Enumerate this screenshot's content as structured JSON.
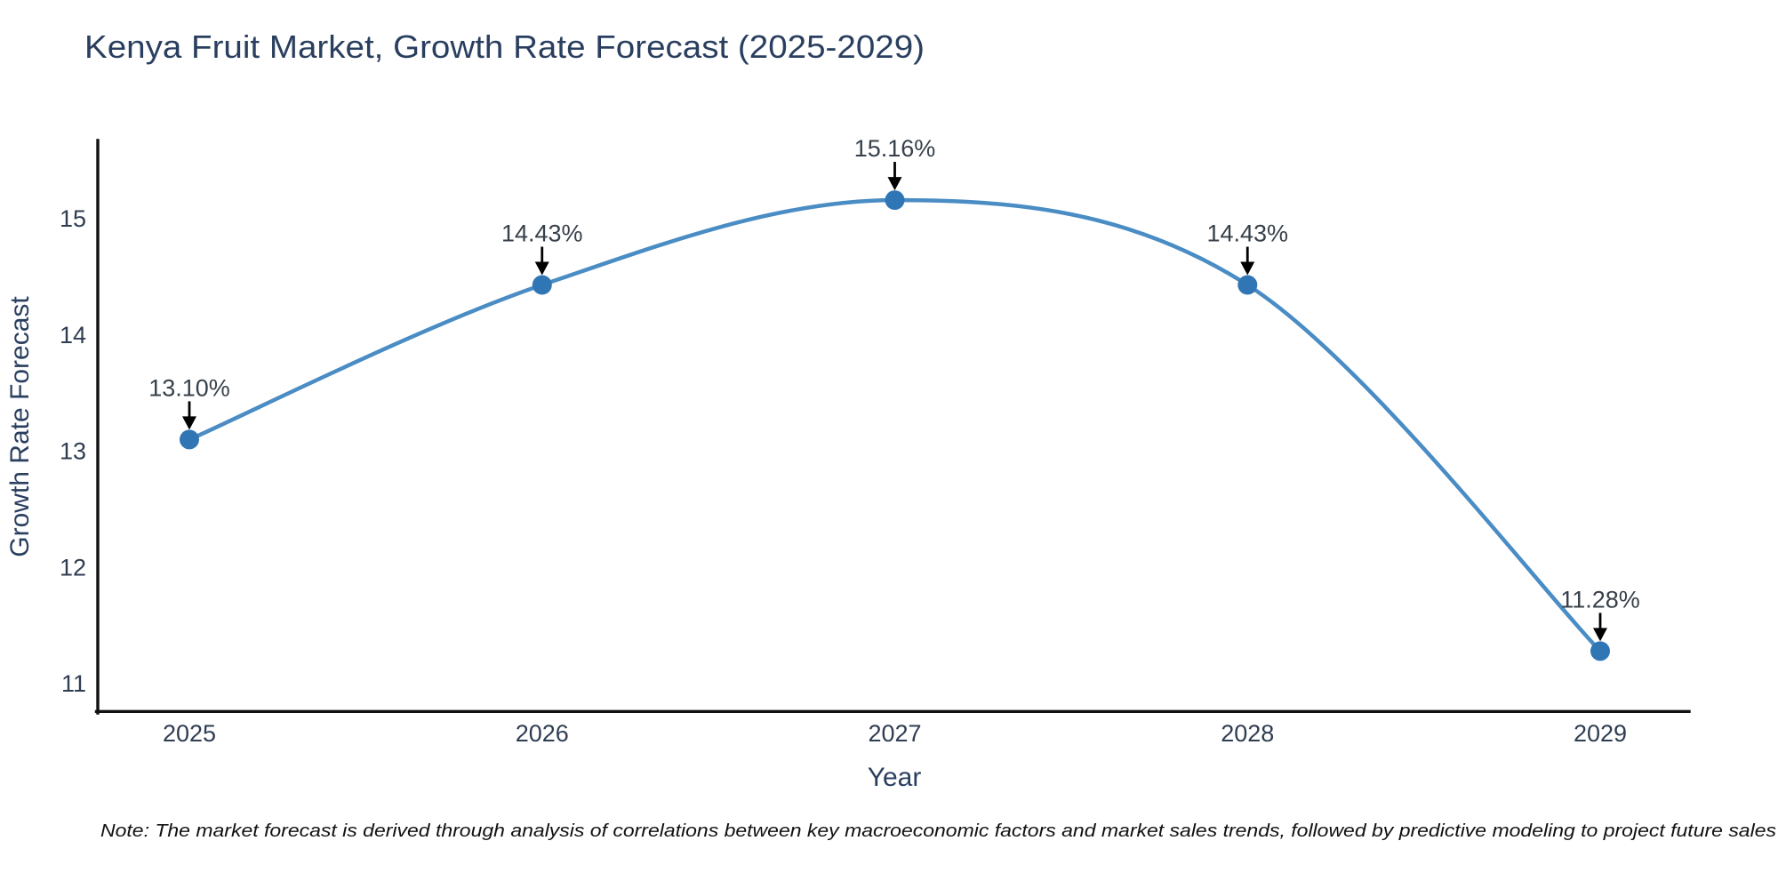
{
  "header": {
    "title": "Kenya Fruit Market, Growth Rate Forecast (2025-2029)"
  },
  "chart_data": {
    "type": "line",
    "line_shape": "spline",
    "title": "Kenya Fruit Market, Growth Rate Forecast (2025-2029)",
    "xlabel": "Year",
    "ylabel": "Growth Rate Forecast",
    "x": [
      2025,
      2026,
      2027,
      2028,
      2029
    ],
    "y": [
      13.1,
      14.43,
      15.16,
      14.43,
      11.28
    ],
    "point_labels": [
      "13.10%",
      "14.43%",
      "15.16%",
      "14.43%",
      "11.28%"
    ],
    "xticks": [
      "2025",
      "2026",
      "2027",
      "2028",
      "2029"
    ],
    "yticks": [
      11,
      12,
      13,
      14,
      15
    ],
    "ylim": [
      10.76,
      15.67
    ],
    "grid": false,
    "legend_position": "none",
    "annotation_arrows": true,
    "colors": {
      "line": "#4a8cc4",
      "marker": "#3076b5",
      "axis_line": "#111111",
      "title_text": "#2a3f5f",
      "tick_text": "#2f3d52",
      "annotation_text": "#37404a",
      "arrow": "#000000",
      "note_text": "#111111",
      "background": "#ffffff"
    }
  },
  "footer": {
    "note": "Note: The market forecast is derived through analysis of correlations between key macroeconomic factors and market sales trends, followed by predictive modeling to project future sales"
  }
}
